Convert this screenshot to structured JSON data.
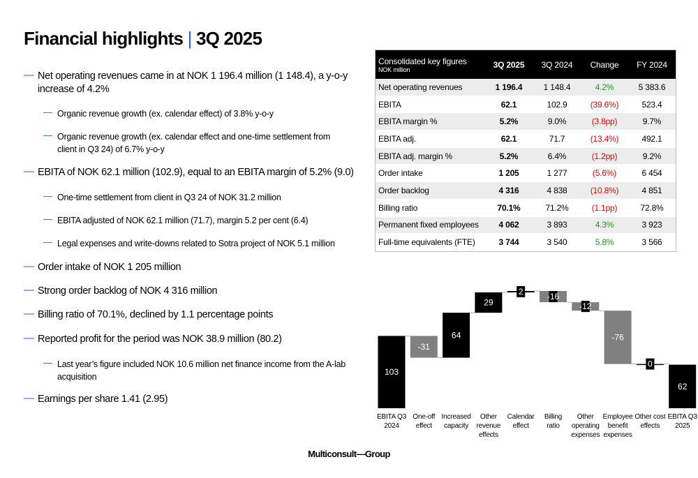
{
  "header": {
    "title": "Financial highlights",
    "separator": "|",
    "period": "3Q 2025"
  },
  "bullets": [
    {
      "level": 1,
      "text": "Net operating revenues came in at NOK 1 196.4 million (1 148.4), a y-o-y increase of 4.2%"
    },
    {
      "level": 2,
      "text": "Organic revenue growth (ex. calendar effect) of 3.8% y-o-y"
    },
    {
      "level": 2,
      "text": "Organic revenue growth (ex. calendar effect and one-time settlement from client in Q3 24) of 6.7% y-o-y"
    },
    {
      "level": 1,
      "text": "EBITA of NOK 62.1 million (102.9), equal to an EBITA margin of 5.2% (9.0)"
    },
    {
      "level": 2,
      "text": "One-time settlement from client in Q3 24 of NOK 31.2 million"
    },
    {
      "level": 2,
      "text": "EBITA adjusted of NOK 62.1 million (71.7), margin 5.2 per cent (6.4)"
    },
    {
      "level": 2,
      "text": "Legal expenses and write-downs related to Sotra project of NOK 5.1 million"
    },
    {
      "level": 1,
      "text": "Order intake of NOK 1 205 million"
    },
    {
      "level": 1,
      "text": "Strong order backlog of NOK 4 316 million"
    },
    {
      "level": 1,
      "text": "Billing ratio of 70.1%, declined by 1.1 percentage points"
    },
    {
      "level": 1,
      "text": "Reported profit for the period was NOK 38.9 million (80.2)"
    },
    {
      "level": 2,
      "text": "Last year’s figure included NOK 10.6 million net finance income from the A-lab acquisition"
    },
    {
      "level": 1,
      "text": "Earnings per share 1.41 (2.95)"
    }
  ],
  "table": {
    "title": "Consolidated key figures",
    "subtitle": "NOK million",
    "columns": [
      "3Q 2025",
      "3Q 2024",
      "Change",
      "FY 2024"
    ],
    "rows": [
      [
        "Net operating revenues",
        "1 196.4",
        "1 148.4",
        "4.2%",
        "5 383.6"
      ],
      [
        "EBITA",
        "62.1",
        "102.9",
        "(39.6%)",
        "523.4"
      ],
      [
        "EBITA margin %",
        "5.2%",
        "9.0%",
        "(3.8pp)",
        "9.7%"
      ],
      [
        "EBITA adj.",
        "62.1",
        "71.7",
        "(13.4%)",
        "492.1"
      ],
      [
        "EBITA adj. margin %",
        "5.2%",
        "6.4%",
        "(1.2pp)",
        "9.2%"
      ],
      [
        "Order intake",
        "1 205",
        "1 277",
        "(5.6%)",
        "6 454"
      ],
      [
        "Order backlog",
        "4 316",
        "4 838",
        "(10.8%)",
        "4 851"
      ],
      [
        "Billing ratio",
        "70.1%",
        "71.2%",
        "(1.1pp)",
        "72.8%"
      ],
      [
        "Permanent fixed employees",
        "4 062",
        "3 893",
        "4.3%",
        "3 923"
      ],
      [
        "Full-time equivalents (FTE)",
        "3 744",
        "3 540",
        "5.8%",
        "3 566"
      ]
    ]
  },
  "chart_data": {
    "type": "waterfall",
    "categories": [
      "EBITA Q3 2024",
      "One-off effect",
      "Increased capacity",
      "Other revenue effects",
      "Calendar effect",
      "Billing ratio",
      "Other operating expenses",
      "Employee benefit expenses",
      "Other cost effects",
      "EBITA Q3 2025"
    ],
    "values": [
      103,
      -31,
      64,
      29,
      2,
      -16,
      -12,
      -76,
      0,
      62
    ],
    "totals": [
      true,
      false,
      false,
      false,
      false,
      false,
      false,
      false,
      false,
      true
    ],
    "colors": {
      "total": "#000000",
      "increase": "#000000",
      "decrease": "#808080"
    }
  },
  "footer": {
    "logo": "Multiconsult—Group"
  }
}
